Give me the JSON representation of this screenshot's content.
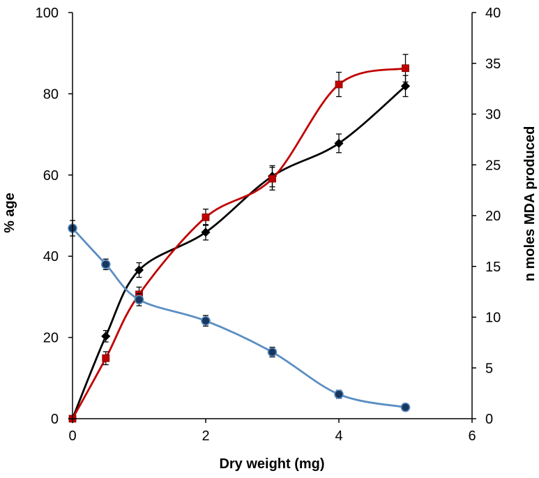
{
  "chart_data": {
    "type": "line",
    "title": "",
    "xlabel": "Dry weight (mg)",
    "ylabel_left": "% age",
    "ylabel_right": "n moles MDA produced",
    "xlim": [
      0,
      6
    ],
    "ylim_left": [
      0,
      100
    ],
    "ylim_right": [
      0,
      40
    ],
    "x_ticks": [
      "0",
      "2",
      "4",
      "6"
    ],
    "y_ticks_left": [
      "0",
      "20",
      "40",
      "60",
      "80",
      "100"
    ],
    "y_ticks_right": [
      "0",
      "5",
      "10",
      "15",
      "20",
      "25",
      "30",
      "35",
      "40"
    ],
    "grid": false,
    "series": [
      {
        "name": "Black diamonds",
        "axis": "left",
        "marker": "diamond",
        "color": "#000000",
        "x": [
          0,
          0.5,
          1,
          2,
          3,
          4,
          5
        ],
        "y": [
          0,
          20.3,
          36.6,
          45.9,
          59.7,
          67.8,
          81.9
        ],
        "err": [
          0,
          1.4,
          1.8,
          1.9,
          2.6,
          2.3,
          2.6
        ]
      },
      {
        "name": "Red squares",
        "axis": "left",
        "marker": "square",
        "color": "#c00000",
        "x": [
          0,
          0.5,
          1,
          2,
          3,
          4,
          5
        ],
        "y": [
          0,
          14.9,
          30.6,
          49.6,
          59.1,
          82.3,
          86.3
        ],
        "err": [
          0,
          1.6,
          1.8,
          2.0,
          2.8,
          3.0,
          3.4
        ]
      },
      {
        "name": "Blue circles",
        "axis": "left",
        "marker": "circle",
        "color": "#5b8ec2",
        "fill": "#17375e",
        "x": [
          0,
          0.5,
          1,
          2,
          3,
          4,
          5
        ],
        "y": [
          46.9,
          38.0,
          29.3,
          24.1,
          16.4,
          6.0,
          2.8
        ],
        "err": [
          1.9,
          1.3,
          1.5,
          1.3,
          1.2,
          1.0,
          0.9
        ]
      }
    ]
  }
}
